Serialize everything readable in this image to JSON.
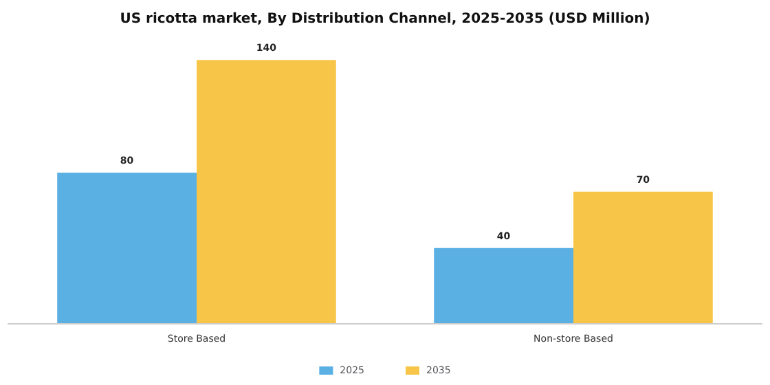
{
  "chart_data": {
    "type": "bar",
    "title": "US ricotta market, By Distribution Channel, 2025-2035 (USD Million)",
    "categories": [
      "Store Based",
      "Non-store Based"
    ],
    "series": [
      {
        "name": "2025",
        "color": "#5aafe3",
        "values": [
          80,
          40
        ]
      },
      {
        "name": "2035",
        "color": "#f7c548",
        "values": [
          140,
          70
        ]
      }
    ],
    "data_labels": true,
    "legend": "bottom"
  }
}
